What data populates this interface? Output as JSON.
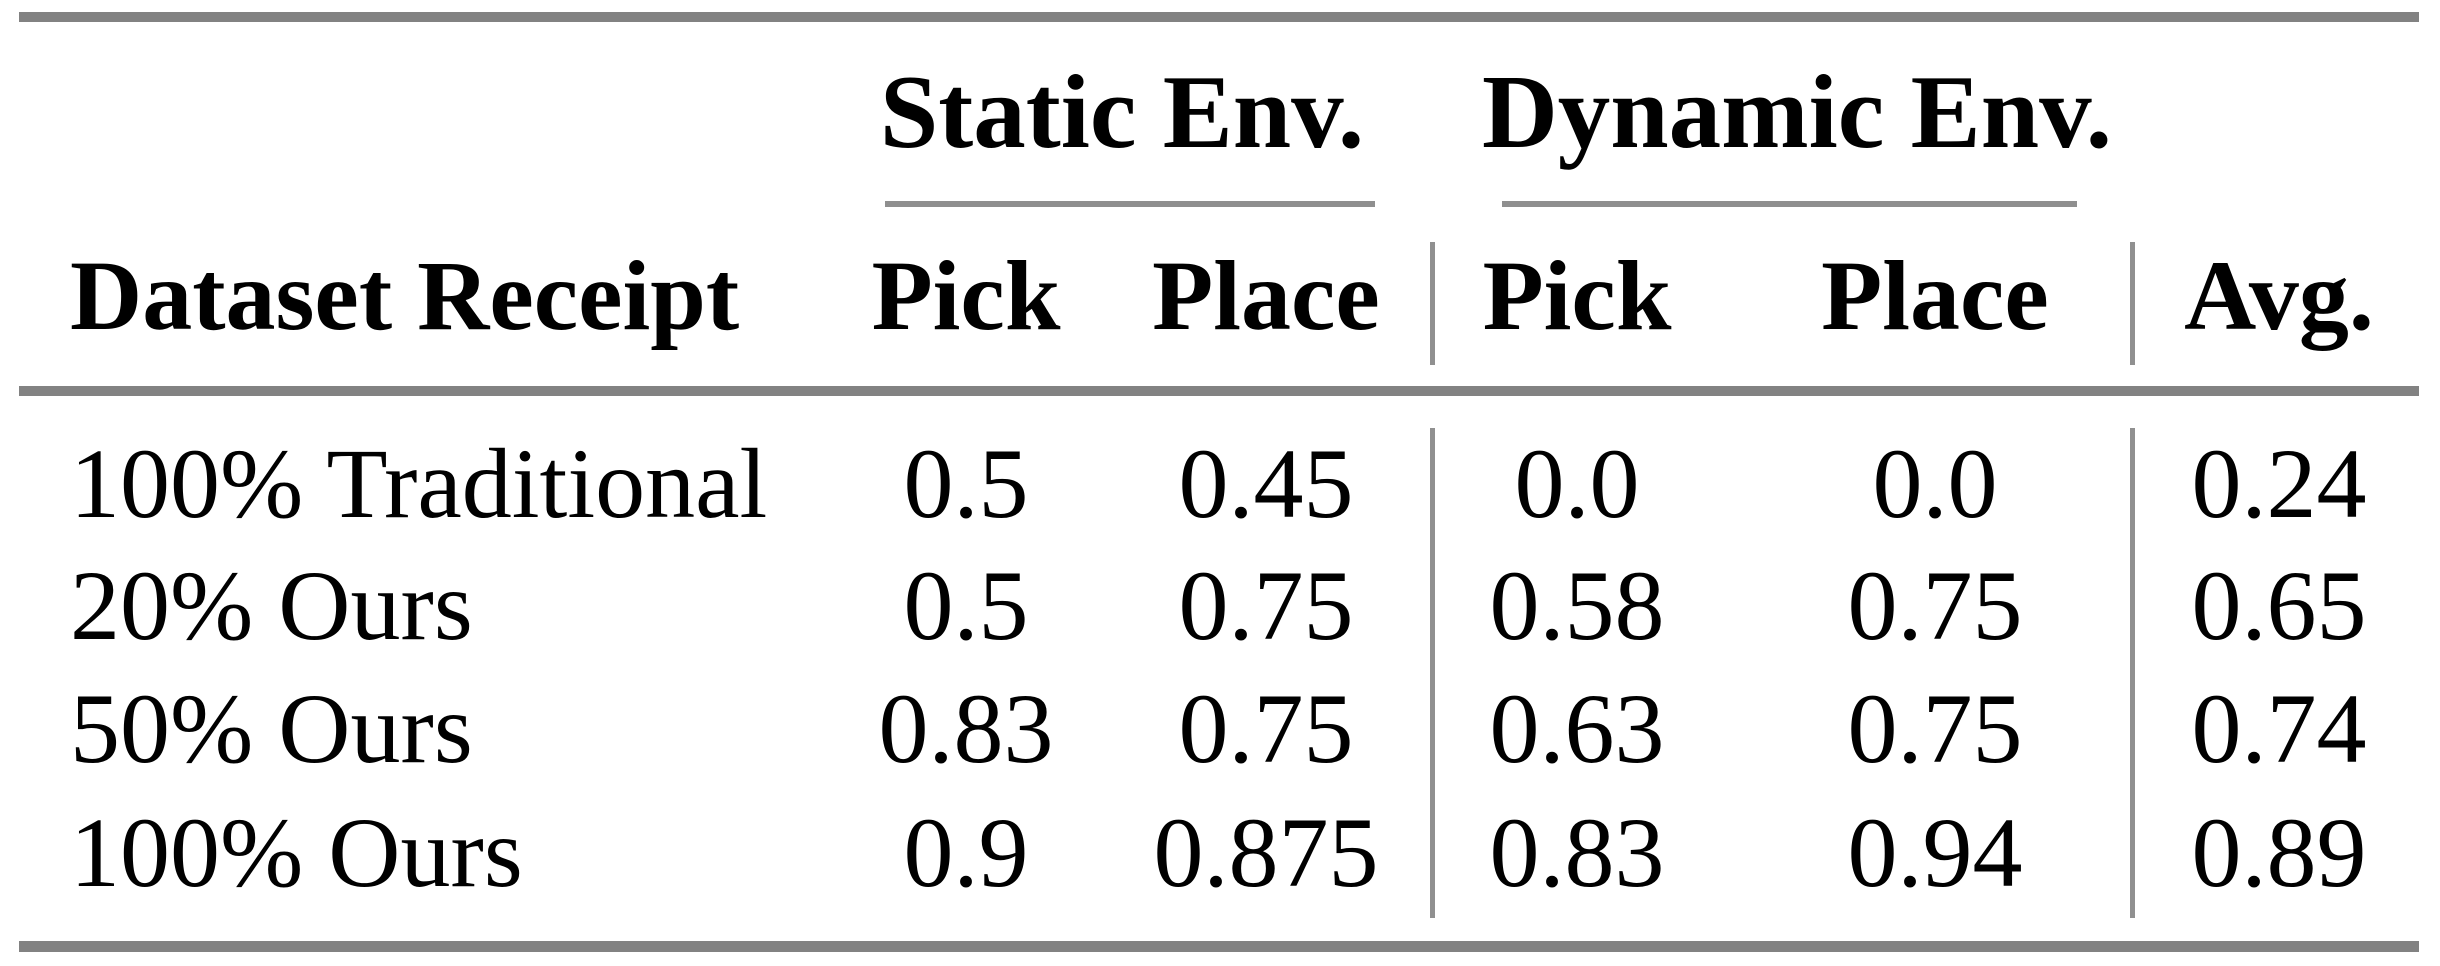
{
  "table": {
    "row_header": "Dataset Receipt",
    "groups": {
      "static": {
        "label": "Static Env."
      },
      "dynamic": {
        "label": "Dynamic Env."
      }
    },
    "sub_headers": {
      "static_pick": "Pick",
      "static_place": "Place",
      "dynamic_pick": "Pick",
      "dynamic_place": "Place",
      "avg": "Avg."
    },
    "rows": [
      {
        "label": "100% Traditional",
        "values": [
          "0.5",
          "0.45",
          "0.0",
          "0.0",
          "0.24"
        ]
      },
      {
        "label": "20% Ours",
        "values": [
          "0.5",
          "0.75",
          "0.58",
          "0.75",
          "0.65"
        ]
      },
      {
        "label": "50% Ours",
        "values": [
          "0.83",
          "0.75",
          "0.63",
          "0.75",
          "0.74"
        ]
      },
      {
        "label": "100% Ours",
        "values": [
          "0.9",
          "0.875",
          "0.83",
          "0.94",
          "0.89"
        ]
      }
    ]
  },
  "colors": {
    "rule_gray": "#828282",
    "separator_gray": "#909090",
    "text_black": "#000000"
  }
}
